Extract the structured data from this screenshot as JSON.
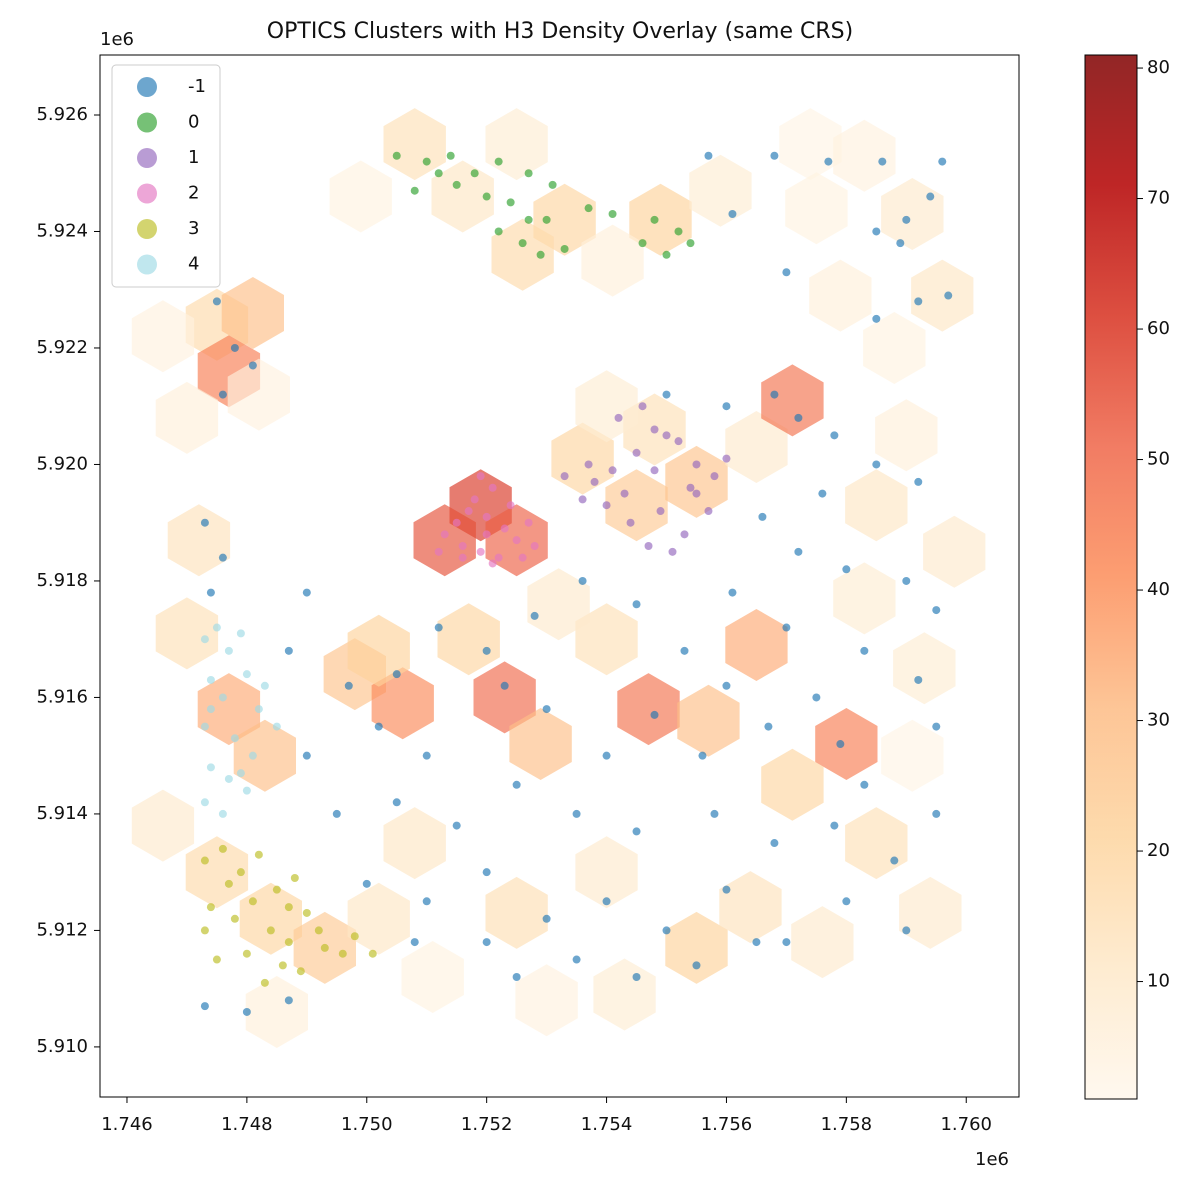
{
  "chart_data": {
    "type": "scatter",
    "title": "OPTICS Clusters with H3 Density Overlay (same CRS)",
    "x_offset_label": "1e6",
    "y_offset_label": "1e6",
    "xlim": [
      1.74555,
      1.76088
    ],
    "ylim": [
      5.90914,
      5.92703
    ],
    "xticks": [
      1.746,
      1.748,
      {
        "value": 1.75,
        "label": "1.750"
      },
      1.752,
      1.754,
      1.756,
      1.758,
      {
        "value": 1.76,
        "label": "1.760"
      }
    ],
    "yticks": [
      {
        "value": 5.91,
        "label": "5.910"
      },
      5.912,
      5.914,
      5.916,
      5.918,
      {
        "value": 5.92,
        "label": "5.920"
      },
      5.922,
      5.924,
      5.926
    ],
    "legend_position": "upper left",
    "colorbar": {
      "clim": [
        1,
        81
      ],
      "ticks": [
        10,
        20,
        30,
        40,
        50,
        60,
        70,
        80
      ],
      "colormap_colors": [
        "#fff7ec",
        "#fee8c8",
        "#fdd49e",
        "#fdbb84",
        "#fc8d59",
        "#ef6548",
        "#d7301f",
        "#b30000",
        "#7f0000"
      ]
    },
    "hexbins": {
      "x": [
        1.7508,
        1.7525,
        1.7516,
        1.7533,
        1.7526,
        1.7549,
        1.7541,
        1.7559,
        1.7499,
        1.7574,
        1.7583,
        1.7591,
        1.7575,
        1.7596,
        1.7579,
        1.7588,
        1.7475,
        1.7481,
        1.7477,
        1.747,
        1.7466,
        1.7482,
        1.7519,
        1.7513,
        1.7525,
        1.7536,
        1.7545,
        1.7555,
        1.7548,
        1.7565,
        1.7571,
        1.754,
        1.7498,
        1.7506,
        1.7502,
        1.7523,
        1.7529,
        1.7517,
        1.7547,
        1.7557,
        1.7565,
        1.758,
        1.7571,
        1.754,
        1.7532,
        1.7477,
        1.7483,
        1.747,
        1.7466,
        1.7475,
        1.7484,
        1.7493,
        1.7502,
        1.7472,
        1.7508,
        1.7525,
        1.754,
        1.7555,
        1.7564,
        1.7585,
        1.7594,
        1.753,
        1.7543,
        1.7576,
        1.7511,
        1.7485,
        1.7593,
        1.7591,
        1.7598,
        1.7585,
        1.759,
        1.7583
      ],
      "y": [
        5.9255,
        5.9255,
        5.9246,
        5.9242,
        5.9236,
        5.9242,
        5.9235,
        5.9247,
        5.9246,
        5.9255,
        5.9253,
        5.9243,
        5.9244,
        5.9229,
        5.9229,
        5.922,
        5.9224,
        5.9226,
        5.9216,
        5.9208,
        5.9222,
        5.9212,
        5.9193,
        5.9187,
        5.9187,
        5.9201,
        5.9193,
        5.9197,
        5.9206,
        5.9203,
        5.9211,
        5.921,
        5.9164,
        5.9159,
        5.9168,
        5.916,
        5.9152,
        5.917,
        5.9158,
        5.9156,
        5.9169,
        5.9152,
        5.9145,
        5.917,
        5.9176,
        5.9158,
        5.915,
        5.9171,
        5.9138,
        5.913,
        5.9122,
        5.9117,
        5.9122,
        5.9187,
        5.9135,
        5.9123,
        5.913,
        5.9117,
        5.9124,
        5.9135,
        5.9123,
        5.9108,
        5.9109,
        5.9118,
        5.9112,
        5.9106,
        5.9165,
        5.915,
        5.9185,
        5.9193,
        5.9205,
        5.9177
      ],
      "values": [
        15,
        8,
        12,
        20,
        18,
        22,
        6,
        8,
        4,
        3,
        5,
        10,
        4,
        12,
        6,
        4,
        18,
        30,
        45,
        6,
        5,
        5,
        60,
        55,
        52,
        20,
        25,
        28,
        15,
        10,
        48,
        8,
        28,
        42,
        22,
        50,
        30,
        20,
        48,
        30,
        35,
        45,
        20,
        15,
        10,
        35,
        30,
        15,
        10,
        18,
        20,
        25,
        12,
        14,
        12,
        16,
        10,
        22,
        14,
        15,
        10,
        5,
        8,
        10,
        4,
        6,
        8,
        3,
        10,
        12,
        6,
        8
      ]
    },
    "series": [
      {
        "name": "-1",
        "color": "#1f77b4",
        "x": [
          1.7475,
          1.7478,
          1.7476,
          1.7481,
          1.7473,
          1.7476,
          1.7474,
          1.7557,
          1.7568,
          1.7577,
          1.7561,
          1.757,
          1.7585,
          1.759,
          1.7594,
          1.7596,
          1.7586,
          1.7592,
          1.7597,
          1.7585,
          1.7589,
          1.755,
          1.756,
          1.7568,
          1.7572,
          1.7578,
          1.7585,
          1.7592,
          1.7576,
          1.7566,
          1.7572,
          1.758,
          1.759,
          1.7595,
          1.7561,
          1.757,
          1.7583,
          1.7592,
          1.7595,
          1.7575,
          1.756,
          1.7553,
          1.7545,
          1.7536,
          1.7528,
          1.752,
          1.7512,
          1.7505,
          1.7497,
          1.7502,
          1.751,
          1.7523,
          1.753,
          1.754,
          1.7548,
          1.7556,
          1.7567,
          1.7579,
          1.7583,
          1.749,
          1.7487,
          1.749,
          1.7495,
          1.7505,
          1.7515,
          1.7525,
          1.7535,
          1.7545,
          1.7558,
          1.7568,
          1.7578,
          1.7588,
          1.7595,
          1.75,
          1.751,
          1.752,
          1.753,
          1.754,
          1.755,
          1.756,
          1.757,
          1.758,
          1.759,
          1.7525,
          1.7535,
          1.7545,
          1.7555,
          1.7565,
          1.7473,
          1.748,
          1.7487,
          1.7508,
          1.752
        ],
        "y": [
          5.9228,
          5.922,
          5.9212,
          5.9217,
          5.919,
          5.9184,
          5.9178,
          5.9253,
          5.9253,
          5.9252,
          5.9243,
          5.9233,
          5.924,
          5.9242,
          5.9246,
          5.9252,
          5.9252,
          5.9228,
          5.9229,
          5.9225,
          5.9238,
          5.9212,
          5.921,
          5.9212,
          5.9208,
          5.9205,
          5.92,
          5.9197,
          5.9195,
          5.9191,
          5.9185,
          5.9182,
          5.918,
          5.9175,
          5.9178,
          5.9172,
          5.9168,
          5.9163,
          5.9155,
          5.916,
          5.9162,
          5.9168,
          5.9176,
          5.918,
          5.9174,
          5.9168,
          5.9172,
          5.9164,
          5.9162,
          5.9155,
          5.915,
          5.9162,
          5.9158,
          5.915,
          5.9157,
          5.915,
          5.9155,
          5.9152,
          5.9145,
          5.9178,
          5.9168,
          5.915,
          5.914,
          5.9142,
          5.9138,
          5.9145,
          5.914,
          5.9137,
          5.914,
          5.9135,
          5.9138,
          5.9132,
          5.914,
          5.9128,
          5.9125,
          5.913,
          5.9122,
          5.9125,
          5.912,
          5.9127,
          5.9118,
          5.9125,
          5.912,
          5.9112,
          5.9115,
          5.9112,
          5.9114,
          5.9118,
          5.9107,
          5.9106,
          5.9108,
          5.9118,
          5.9118
        ]
      },
      {
        "name": "0",
        "color": "#2ca02c",
        "x": [
          1.7505,
          1.751,
          1.7514,
          1.7518,
          1.7522,
          1.7508,
          1.7515,
          1.7524,
          1.7527,
          1.753,
          1.7526,
          1.7522,
          1.7529,
          1.7533,
          1.7537,
          1.7541,
          1.7546,
          1.7548,
          1.7552,
          1.7554,
          1.755,
          1.752,
          1.7512,
          1.7531,
          1.7527
        ],
        "y": [
          5.9253,
          5.9252,
          5.9253,
          5.925,
          5.9252,
          5.9247,
          5.9248,
          5.9245,
          5.925,
          5.9242,
          5.9238,
          5.924,
          5.9236,
          5.9237,
          5.9244,
          5.9243,
          5.9238,
          5.9242,
          5.924,
          5.9238,
          5.9236,
          5.9246,
          5.925,
          5.9248,
          5.9242
        ]
      },
      {
        "name": "1",
        "color": "#9467bd",
        "x": [
          1.7533,
          1.7537,
          1.7541,
          1.7545,
          1.7548,
          1.7552,
          1.7555,
          1.7558,
          1.756,
          1.7542,
          1.7546,
          1.755,
          1.7554,
          1.754,
          1.7544,
          1.7549,
          1.7553,
          1.7557,
          1.7547,
          1.7551,
          1.7555,
          1.7538,
          1.7536,
          1.7543,
          1.7548
        ],
        "y": [
          5.9198,
          5.92,
          5.9199,
          5.9202,
          5.9206,
          5.9204,
          5.92,
          5.9198,
          5.9201,
          5.9208,
          5.921,
          5.9205,
          5.9196,
          5.9193,
          5.919,
          5.9192,
          5.9188,
          5.9192,
          5.9186,
          5.9185,
          5.9195,
          5.9197,
          5.9194,
          5.9195,
          5.9199
        ]
      },
      {
        "name": "2",
        "color": "#e377c2",
        "x": [
          1.7513,
          1.7516,
          1.7519,
          1.7522,
          1.7525,
          1.7528,
          1.7517,
          1.752,
          1.7523,
          1.7515,
          1.7518,
          1.7521,
          1.7524,
          1.7527,
          1.7519,
          1.7521,
          1.7512,
          1.7526,
          1.7516,
          1.752
        ],
        "y": [
          5.9188,
          5.9186,
          5.9185,
          5.9184,
          5.9187,
          5.9186,
          5.9192,
          5.9191,
          5.9189,
          5.919,
          5.9194,
          5.9196,
          5.9193,
          5.919,
          5.9198,
          5.9183,
          5.9185,
          5.9184,
          5.9184,
          5.9188
        ]
      },
      {
        "name": "3",
        "color": "#bcbd22",
        "x": [
          1.7473,
          1.7476,
          1.7479,
          1.7482,
          1.7485,
          1.7488,
          1.7474,
          1.7478,
          1.7481,
          1.7484,
          1.7487,
          1.749,
          1.7493,
          1.7496,
          1.7475,
          1.748,
          1.7486,
          1.7489,
          1.7492,
          1.7477,
          1.7483,
          1.7498,
          1.7501,
          1.7473,
          1.7487
        ],
        "y": [
          5.9132,
          5.9134,
          5.913,
          5.9133,
          5.9127,
          5.9129,
          5.9124,
          5.9122,
          5.9125,
          5.912,
          5.9118,
          5.9123,
          5.9117,
          5.9116,
          5.9115,
          5.9116,
          5.9114,
          5.9113,
          5.912,
          5.9128,
          5.9111,
          5.9119,
          5.9116,
          5.912,
          5.9124
        ]
      },
      {
        "name": "4",
        "color": "#9edae5",
        "x": [
          1.7473,
          1.7475,
          1.7477,
          1.7479,
          1.7474,
          1.7476,
          1.748,
          1.7482,
          1.7473,
          1.7478,
          1.7481,
          1.7474,
          1.7477,
          1.748,
          1.7473,
          1.7476,
          1.7479,
          1.7474,
          1.7485,
          1.7483
        ],
        "y": [
          5.917,
          5.9172,
          5.9168,
          5.9171,
          5.9163,
          5.916,
          5.9164,
          5.9158,
          5.9155,
          5.9153,
          5.915,
          5.9148,
          5.9146,
          5.9144,
          5.9142,
          5.914,
          5.9147,
          5.9158,
          5.9155,
          5.9162
        ]
      }
    ]
  }
}
